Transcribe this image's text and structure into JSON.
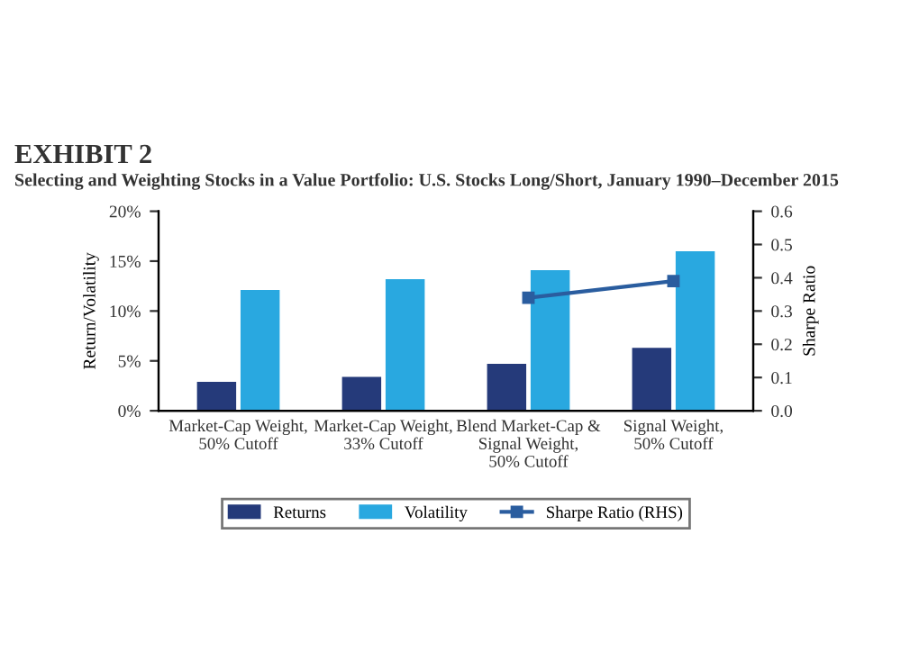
{
  "chart_data": {
    "type": "bar",
    "title": "EXHIBIT 2",
    "subtitle": "Selecting and Weighting Stocks in a Value Portfolio: U.S. Stocks Long/Short, January 1990–December 2015",
    "categories": [
      "Market-Cap Weight,\n50% Cutoff",
      "Market-Cap Weight,\n33% Cutoff",
      "Blend Market-Cap &\nSignal Weight,\n50% Cutoff",
      "Signal Weight,\n50% Cutoff"
    ],
    "series": [
      {
        "name": "Returns",
        "color": "#253a7a",
        "values": [
          2.9,
          3.4,
          4.7,
          6.3
        ]
      },
      {
        "name": "Volatility",
        "color": "#29a8e0",
        "values": [
          12.1,
          13.2,
          14.1,
          16.0
        ]
      },
      {
        "name": "Sharpe Ratio (RHS)",
        "type": "line",
        "axis": "y2",
        "color": "#2a5d9f",
        "marker": "square",
        "values": [
          null,
          null,
          0.34,
          0.39
        ]
      }
    ],
    "ylabel": "Return/Volatility",
    "y2label": "Sharpe Ratio",
    "ylim": [
      0,
      20
    ],
    "yticks": [
      {
        "value": 0,
        "label": "0%"
      },
      {
        "value": 5,
        "label": "5%"
      },
      {
        "value": 10,
        "label": "10%"
      },
      {
        "value": 15,
        "label": "15%"
      },
      {
        "value": 20,
        "label": "20%"
      }
    ],
    "y2lim": [
      0,
      0.6
    ],
    "y2ticks": [
      {
        "value": 0,
        "label": "0.0"
      },
      {
        "value": 0.1,
        "label": "0.1"
      },
      {
        "value": 0.2,
        "label": "0.2"
      },
      {
        "value": 0.3,
        "label": "0.3"
      },
      {
        "value": 0.4,
        "label": "0.4"
      },
      {
        "value": 0.5,
        "label": "0.5"
      },
      {
        "value": 0.6,
        "label": "0.6"
      }
    ],
    "legend": "bottom",
    "grid": false
  }
}
